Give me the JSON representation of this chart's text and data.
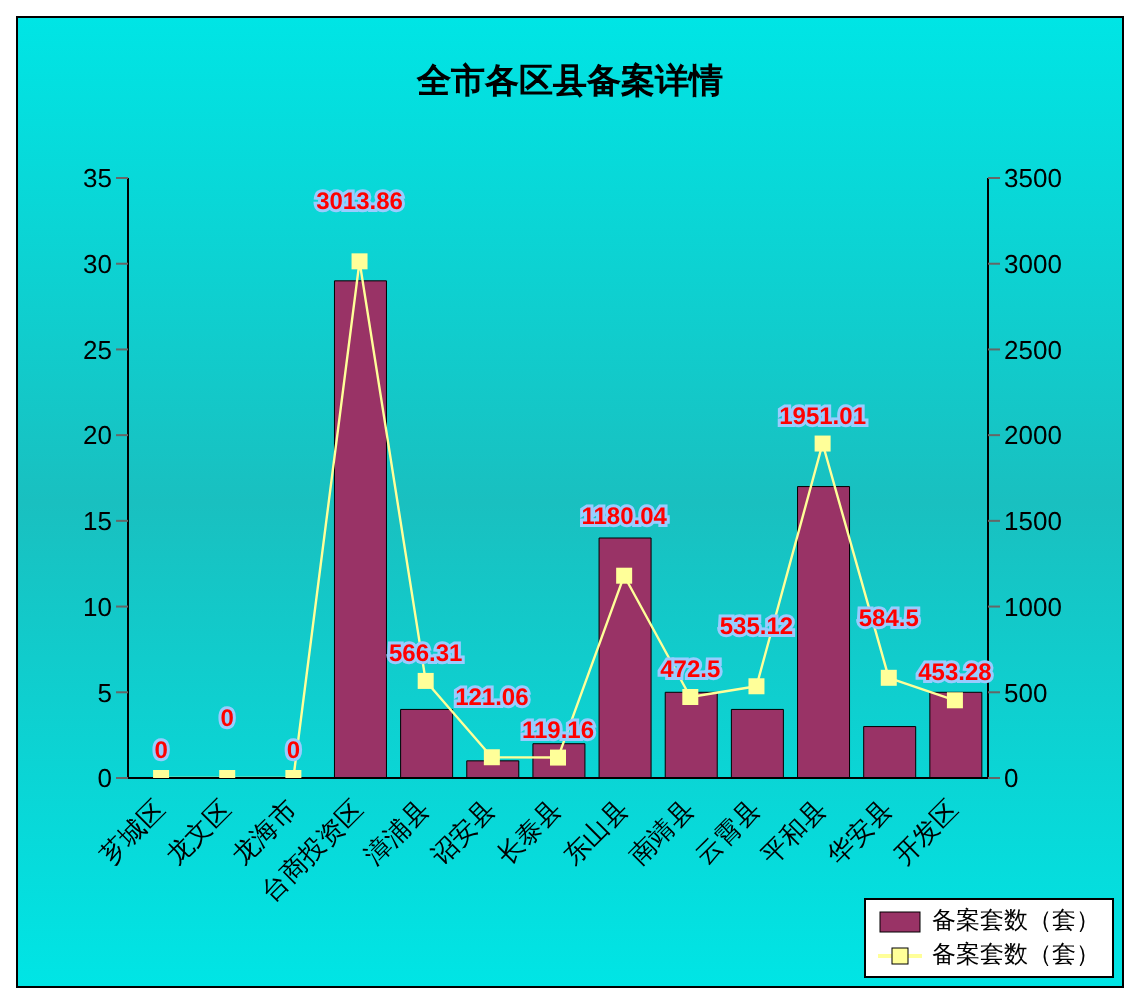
{
  "chart_data": {
    "type": "bar",
    "title": "全市各区县备案详情",
    "categories": [
      "芗城区",
      "龙文区",
      "龙海市",
      "台商投资区",
      "漳浦县",
      "诏安县",
      "长泰县",
      "东山县",
      "南靖县",
      "云霄县",
      "平和县",
      "华安县",
      "开发区"
    ],
    "series": [
      {
        "name": "备案套数（套）",
        "color": "#993366",
        "values": [
          0,
          0,
          0,
          29,
          4,
          1,
          2,
          14,
          5,
          4,
          17,
          3,
          5
        ]
      },
      {
        "name": "备案套数（套）",
        "type": "line",
        "axis": "y2",
        "color": "#ffff99",
        "marker": "square",
        "value_labels": [
          "0",
          "0",
          "0",
          "3013.86",
          "566.31",
          "121.06",
          "119.16",
          "1180.04",
          "472.5",
          "535.12",
          "1951.01",
          "584.5",
          "453.28"
        ],
        "values": [
          0,
          0,
          0,
          3013.86,
          566.31,
          121.06,
          119.16,
          1180.04,
          472.5,
          535.12,
          1951.01,
          584.5,
          453.28
        ]
      }
    ],
    "ylim": [
      0,
      35
    ],
    "yticks": [
      0,
      5,
      10,
      15,
      20,
      25,
      30,
      35
    ],
    "y2lim": [
      0,
      3500
    ],
    "y2ticks": [
      0,
      500,
      1000,
      1500,
      2000,
      2500,
      3000,
      3500
    ],
    "grid": false,
    "legend": "bottom right"
  }
}
